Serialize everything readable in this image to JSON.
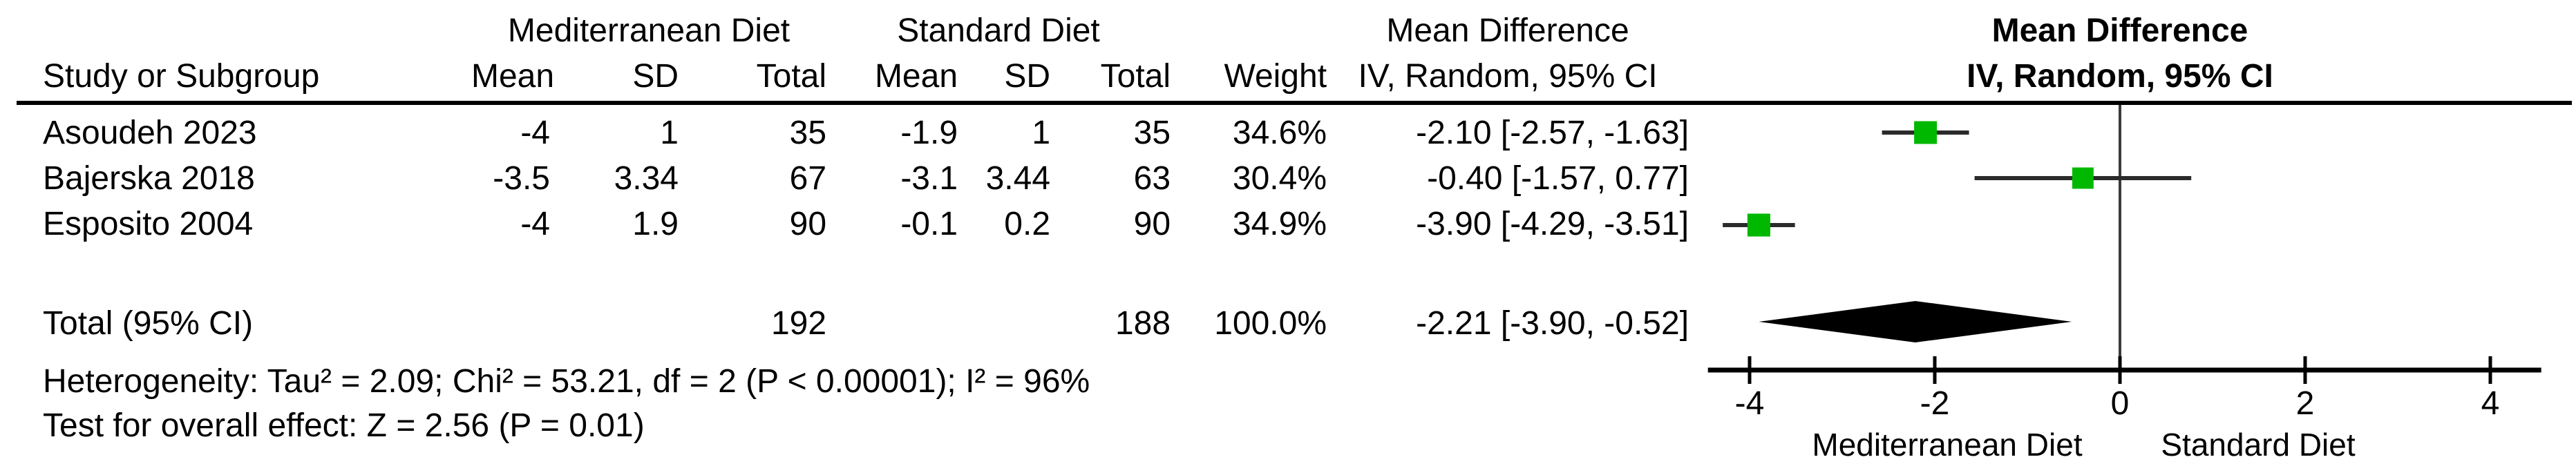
{
  "table": {
    "group1_header": "Mediterranean Diet",
    "group2_header": "Standard Diet",
    "effect_header": "Mean Difference",
    "columns": {
      "study": "Study or Subgroup",
      "mean": "Mean",
      "sd": "SD",
      "total": "Total",
      "mean2": "Mean",
      "sd2": "SD",
      "total2": "Total",
      "weight": "Weight",
      "effect": "IV, Random, 95% CI"
    },
    "rows": [
      {
        "study": "Asoudeh 2023",
        "mean1": "-4",
        "sd1": "1",
        "total1": "35",
        "mean2": "-1.9",
        "sd2": "1",
        "total2": "35",
        "weight": "34.6%",
        "ci": "-2.10 [-2.57, -1.63]"
      },
      {
        "study": "Bajerska 2018",
        "mean1": "-3.5",
        "sd1": "3.34",
        "total1": "67",
        "mean2": "-3.1",
        "sd2": "3.44",
        "total2": "63",
        "weight": "30.4%",
        "ci": "-0.40 [-1.57, 0.77]"
      },
      {
        "study": "Esposito 2004",
        "mean1": "-4",
        "sd1": "1.9",
        "total1": "90",
        "mean2": "-0.1",
        "sd2": "0.2",
        "total2": "90",
        "weight": "34.9%",
        "ci": "-3.90 [-4.29, -3.51]"
      }
    ],
    "total_row": {
      "label": "Total (95% CI)",
      "total1": "192",
      "total2": "188",
      "weight": "100.0%",
      "ci": "-2.21 [-3.90, -0.52]"
    },
    "heterogeneity": "Heterogeneity: Tau² = 2.09; Chi² = 53.21, df = 2 (P < 0.00001); I² = 96%",
    "overall_effect": "Test for overall effect: Z = 2.56 (P = 0.01)"
  },
  "chart_data": {
    "type": "forest",
    "title": "Mean Difference",
    "subtitle": "IV, Random, 95% CI",
    "studies": [
      {
        "name": "Asoudeh 2023",
        "estimate": -2.1,
        "ci": [
          -2.57,
          -1.63
        ],
        "weight_pct": 34.6
      },
      {
        "name": "Bajerska 2018",
        "estimate": -0.4,
        "ci": [
          -1.57,
          0.77
        ],
        "weight_pct": 30.4
      },
      {
        "name": "Esposito 2004",
        "estimate": -3.9,
        "ci": [
          -4.29,
          -3.51
        ],
        "weight_pct": 34.9
      }
    ],
    "total": {
      "estimate": -2.21,
      "ci": [
        -3.9,
        -0.52
      ]
    },
    "axis": {
      "ticks": [
        -4,
        -2,
        0,
        2,
        4
      ],
      "xlim": [
        -4.45,
        4.55
      ],
      "left_label": "Mediterranean Diet",
      "right_label": "Standard Diet"
    },
    "legend_position": "none",
    "grid": false,
    "marker_color": "#00b800",
    "ci_line_color": "#2b2b2b",
    "diamond_color": "#000000"
  }
}
